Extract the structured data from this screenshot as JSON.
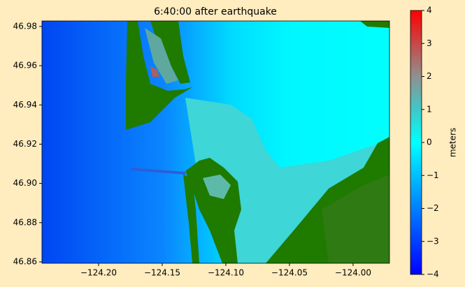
{
  "chart_data": {
    "type": "image",
    "title": "6:40:00 after earthquake",
    "xlim": [
      -124.2445,
      -123.9714
    ],
    "ylim": [
      46.8593,
      46.9828
    ],
    "xticks": [
      {
        "value": -124.2,
        "label": "−124.20"
      },
      {
        "value": -124.15,
        "label": "−124.15"
      },
      {
        "value": -124.1,
        "label": "−124.10"
      },
      {
        "value": -124.05,
        "label": "−124.05"
      },
      {
        "value": -124.0,
        "label": "−124.00"
      }
    ],
    "yticks": [
      46.86,
      46.88,
      {
        "value": 46.9,
        "label": "46.90"
      },
      46.92,
      46.94,
      46.96,
      46.98
    ],
    "colorbar": {
      "label": "meters",
      "lim": [
        -4,
        4
      ],
      "ticks": [
        {
          "value": -4,
          "label": "−4"
        },
        {
          "value": -3,
          "label": "−3"
        },
        {
          "value": -2,
          "label": "−2"
        },
        {
          "value": -1,
          "label": "−1"
        },
        0,
        1,
        2,
        3,
        4
      ]
    }
  }
}
